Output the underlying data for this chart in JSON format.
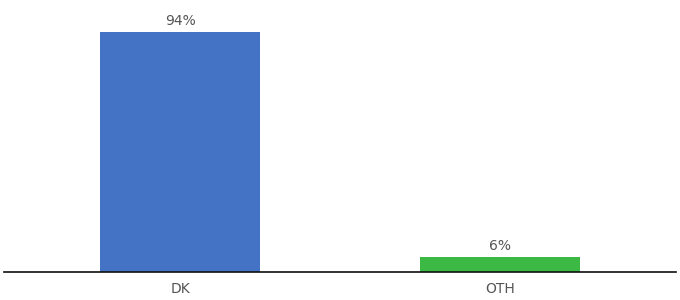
{
  "categories": [
    "DK",
    "OTH"
  ],
  "values": [
    94,
    6
  ],
  "bar_colors": [
    "#4472c4",
    "#3cb944"
  ],
  "label_texts": [
    "94%",
    "6%"
  ],
  "background_color": "#ffffff",
  "ylim": [
    0,
    105
  ],
  "bar_width": 0.5,
  "label_fontsize": 10,
  "tick_fontsize": 10,
  "tick_color": "#555555",
  "label_color": "#555555",
  "axis_line_color": "#111111",
  "figsize": [
    6.8,
    3.0
  ],
  "dpi": 100
}
